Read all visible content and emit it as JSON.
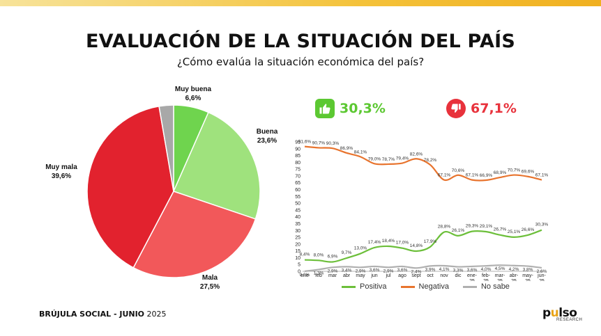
{
  "header": {
    "title": "EVALUACIÓN DE LA SITUACIÓN DEL PAÍS",
    "subtitle": "¿Cómo evalúa la situación económica del país?"
  },
  "kpis": {
    "positive": {
      "value": "30,3%",
      "color": "#5cc832",
      "icon": "thumbs-up-icon"
    },
    "negative": {
      "value": "67,1%",
      "color": "#e8323c",
      "icon": "thumbs-down-icon"
    }
  },
  "footer": {
    "brand": "BRÚJULA SOCIAL - ",
    "period": "JUNIO",
    "year": " 2025"
  },
  "logo": {
    "word_a": "p",
    "word_dot": "u",
    "word_b": "lso",
    "sub": "RESEARCH"
  },
  "chart_data": [
    {
      "type": "pie",
      "slices": [
        {
          "label": "Muy buena",
          "value": 6.6,
          "display": "6,6%",
          "color": "#6fd44e"
        },
        {
          "label": "Buena",
          "value": 23.6,
          "display": "23,6%",
          "color": "#9fe27d"
        },
        {
          "label": "Mala",
          "value": 27.5,
          "display": "27,5%",
          "color": "#f2585a"
        },
        {
          "label": "Muy mala",
          "value": 39.6,
          "display": "39,6%",
          "color": "#e2222e"
        },
        {
          "label": "",
          "value": 2.7,
          "display": "",
          "color": "#a8a8a8"
        }
      ]
    },
    {
      "type": "line",
      "categories": [
        "ene",
        "feb",
        "mar",
        "abr",
        "may",
        "jun",
        "jul",
        "ago",
        "sept",
        "oct",
        "nov",
        "dic",
        "ene-\n25",
        "feb-\n25",
        "mar-\n25",
        "abr-\n25",
        "may-\n25",
        "jun-\n25"
      ],
      "yticks": [
        0,
        5,
        10,
        15,
        20,
        25,
        30,
        35,
        40,
        45,
        50,
        55,
        60,
        65,
        70,
        75,
        80,
        85,
        90,
        95
      ],
      "ylim": [
        0,
        95
      ],
      "legend_position": "bottom",
      "series": [
        {
          "name": "Positiva",
          "color": "#6cbf3a",
          "values": [
            8.4,
            8.0,
            6.9,
            9.7,
            13.0,
            17.4,
            18.4,
            17.0,
            14.8,
            17.9,
            28.8,
            26.1,
            29.3,
            29.1,
            26.7,
            25.1,
            26.6,
            30.3
          ],
          "labels": [
            "8,4%",
            "8,0%",
            "6,9%",
            "9,7%",
            "13,0%",
            "17,4%",
            "18,4%",
            "17,0%",
            "14,8%",
            "17,9%",
            "28,8%",
            "26,1%",
            "29,3%",
            "29,1%",
            "26,7%",
            "25,1%",
            "26,6%",
            "30,3%"
          ]
        },
        {
          "name": "Negativa",
          "color": "#e8742e",
          "values": [
            91.6,
            90.7,
            90.3,
            86.9,
            84.1,
            79.0,
            78.7,
            79.4,
            82.6,
            78.2,
            67.1,
            70.6,
            67.1,
            66.9,
            68.9,
            70.7,
            69.6,
            67.1
          ],
          "labels": [
            "91,6%",
            "90,7%",
            "90,3%",
            "86,9%",
            "84,1%",
            "79,0%",
            "78,7%",
            "79,4%",
            "82,6%",
            "78,2%",
            "67,1%",
            "70,6%",
            "67,1%",
            "66,9%",
            "68,9%",
            "70,7%",
            "69,6%",
            "67,1%"
          ]
        },
        {
          "name": "No sabe",
          "color": "#b0b0b0",
          "values": [
            0.0,
            1.3,
            2.9,
            3.4,
            2.9,
            3.6,
            2.9,
            3.6,
            2.4,
            3.9,
            4.1,
            3.3,
            3.6,
            4.0,
            4.5,
            4.2,
            3.8,
            2.6
          ],
          "labels": [
            "0,0%",
            "1,3%",
            "2,9%",
            "3,4%",
            "2,9%",
            "3,6%",
            "2,9%",
            "3,6%",
            "2,4%",
            "3,9%",
            "4,1%",
            "3,3%",
            "3,6%",
            "4,0%",
            "4,5%",
            "4,2%",
            "3,8%",
            "2,6%"
          ]
        }
      ]
    }
  ]
}
